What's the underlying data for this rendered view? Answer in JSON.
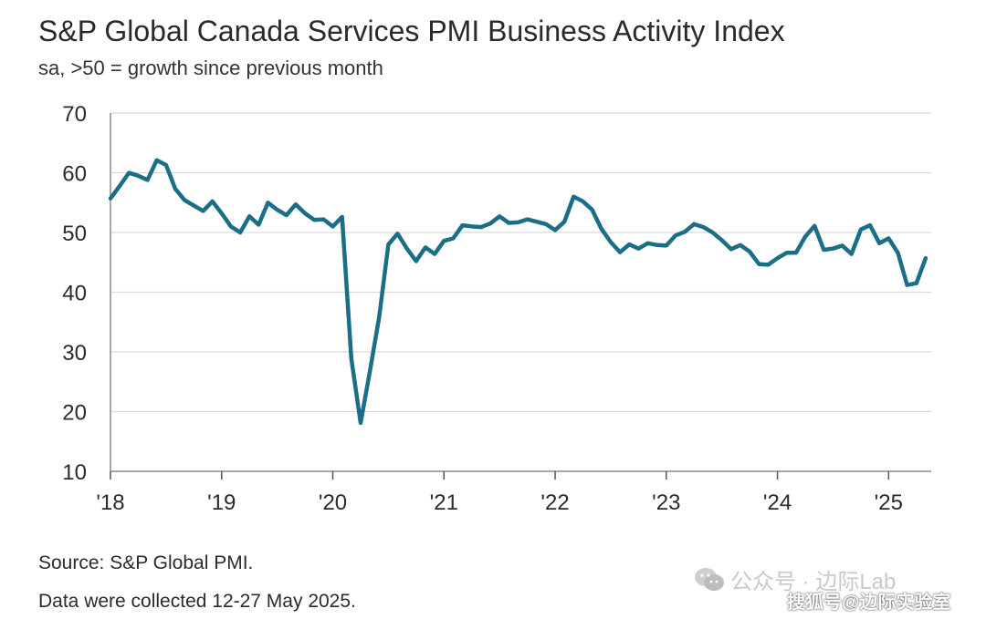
{
  "header": {
    "title": "S&P Global Canada Services PMI Business Activity Index",
    "subtitle": "sa, >50 = growth since previous month"
  },
  "footer": {
    "source": "Source: S&P Global PMI.",
    "collected": "Data were collected 12-27 May 2025."
  },
  "watermark": {
    "text": "公众号 · 边际Lab",
    "icon": "wechat-icon",
    "site_text": "搜狐号@边际实验室"
  },
  "chart_data": {
    "type": "line",
    "title": "S&P Global Canada Services PMI Business Activity Index",
    "subtitle": "sa, >50 = growth since previous month",
    "xlabel": "",
    "ylabel": "",
    "ylim": [
      10,
      70
    ],
    "yticks": [
      10,
      20,
      30,
      40,
      50,
      60,
      70
    ],
    "xticks": [
      {
        "label": "'18",
        "date": "2018-01"
      },
      {
        "label": "'19",
        "date": "2019-01"
      },
      {
        "label": "'20",
        "date": "2020-01"
      },
      {
        "label": "'21",
        "date": "2021-01"
      },
      {
        "label": "'22",
        "date": "2022-01"
      },
      {
        "label": "'23",
        "date": "2023-01"
      },
      {
        "label": "'24",
        "date": "2024-01"
      },
      {
        "label": "'25",
        "date": "2025-01"
      }
    ],
    "grid": "horizontal",
    "line_color": "#1a6e86",
    "grid_color": "#d9d9d9",
    "series": [
      {
        "x": [
          "2018-01",
          "2018-02",
          "2018-03",
          "2018-04",
          "2018-05",
          "2018-06",
          "2018-07",
          "2018-08",
          "2018-09",
          "2018-10",
          "2018-11",
          "2018-12",
          "2019-01",
          "2019-02",
          "2019-03",
          "2019-04",
          "2019-05",
          "2019-06",
          "2019-07",
          "2019-08",
          "2019-09",
          "2019-10",
          "2019-11",
          "2019-12",
          "2020-01",
          "2020-02",
          "2020-03",
          "2020-04",
          "2020-05",
          "2020-06",
          "2020-07",
          "2020-08",
          "2020-09",
          "2020-10",
          "2020-11",
          "2020-12",
          "2021-01",
          "2021-02",
          "2021-03",
          "2021-04",
          "2021-05",
          "2021-06",
          "2021-07",
          "2021-08",
          "2021-09",
          "2021-10",
          "2021-11",
          "2021-12",
          "2022-01",
          "2022-02",
          "2022-03",
          "2022-04",
          "2022-05",
          "2022-06",
          "2022-07",
          "2022-08",
          "2022-09",
          "2022-10",
          "2022-11",
          "2022-12",
          "2023-01",
          "2023-02",
          "2023-03",
          "2023-04",
          "2023-05",
          "2023-06",
          "2023-07",
          "2023-08",
          "2023-09",
          "2023-10",
          "2023-11",
          "2023-12",
          "2024-01",
          "2024-02",
          "2024-03",
          "2024-04",
          "2024-05",
          "2024-06",
          "2024-07",
          "2024-08",
          "2024-09",
          "2024-10",
          "2024-11",
          "2024-12",
          "2025-01",
          "2025-02",
          "2025-03",
          "2025-04",
          "2025-05"
        ],
        "values": [
          55.7,
          57.8,
          60.0,
          59.5,
          58.8,
          62.1,
          61.3,
          57.3,
          55.4,
          54.5,
          53.6,
          55.2,
          53.2,
          51.0,
          50.0,
          52.7,
          51.3,
          55.0,
          53.8,
          52.9,
          54.7,
          53.2,
          52.1,
          52.2,
          51.0,
          52.6,
          28.9,
          18.1,
          26.7,
          35.8,
          48.0,
          49.8,
          47.3,
          45.2,
          47.5,
          46.4,
          48.6,
          49.0,
          51.2,
          51.0,
          50.9,
          51.5,
          52.7,
          51.6,
          51.7,
          52.2,
          51.8,
          51.4,
          50.4,
          51.8,
          56.0,
          55.2,
          53.8,
          50.6,
          48.4,
          46.7,
          48.0,
          47.3,
          48.2,
          47.9,
          47.8,
          49.5,
          50.1,
          51.4,
          50.9,
          50.0,
          48.7,
          47.2,
          47.9,
          46.8,
          44.7,
          44.6,
          45.7,
          46.6,
          46.6,
          49.3,
          51.1,
          47.1,
          47.3,
          47.8,
          46.4,
          50.5,
          51.2,
          48.2,
          49.0,
          46.6,
          41.2,
          41.5,
          45.7
        ]
      }
    ]
  }
}
